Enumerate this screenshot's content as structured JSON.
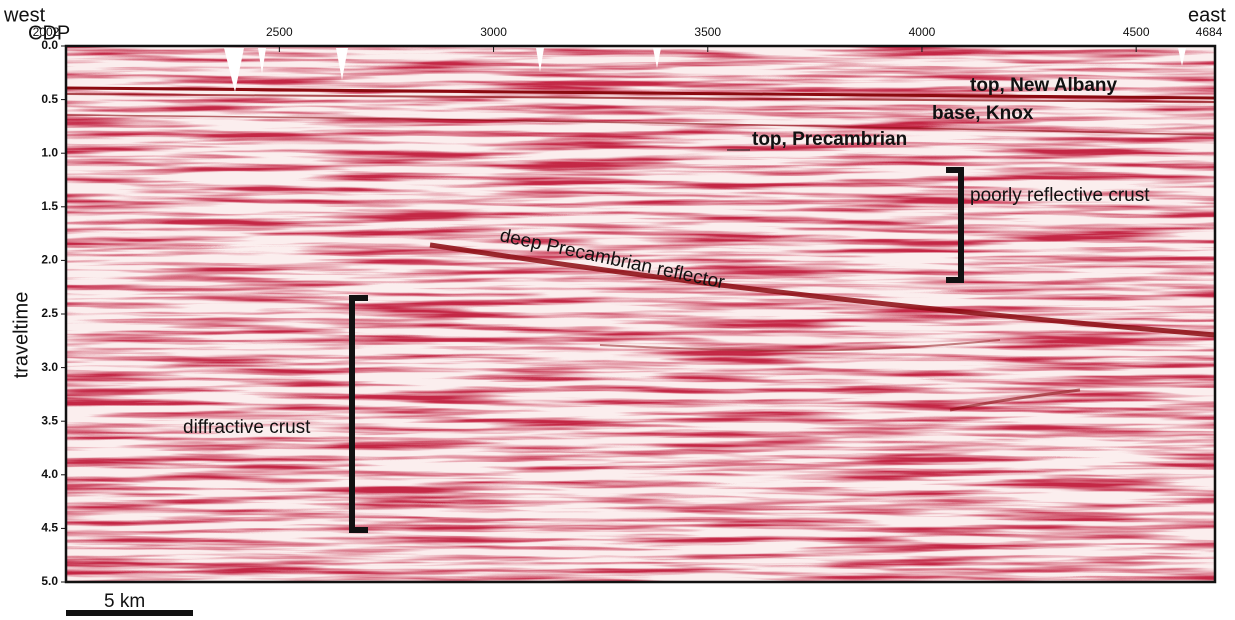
{
  "figure": {
    "x_axis": {
      "label": "CDP",
      "left_label": "west",
      "right_label": "east",
      "lim": [
        2002,
        4684
      ],
      "ticks": [
        2002,
        2500,
        3000,
        3500,
        4000,
        4500,
        4684
      ]
    },
    "y_axis": {
      "label": "traveltime",
      "lim": [
        0,
        5
      ],
      "ticks": [
        {
          "value": 0,
          "label": "0.0"
        },
        {
          "value": 0.5,
          "label": "0.5"
        },
        {
          "value": 1,
          "label": "1.0"
        },
        {
          "value": 1.5,
          "label": "1.5"
        },
        {
          "value": 2,
          "label": "2.0"
        },
        {
          "value": 2.5,
          "label": "2.5"
        },
        {
          "value": 3,
          "label": "3.0"
        },
        {
          "value": 3.5,
          "label": "3.5"
        },
        {
          "value": 4,
          "label": "4.0"
        },
        {
          "value": 4.5,
          "label": "4.5"
        },
        {
          "value": 5,
          "label": "5.0"
        }
      ]
    },
    "annotations": {
      "top_new_albany": "top, New Albany",
      "base_knox": "base, Knox",
      "top_precambrian": "top, Precambrian",
      "poorly_reflective": "poorly reflective crust",
      "deep_reflector": "deep Precambrian reflector",
      "diffractive": "diffractive crust"
    },
    "scale_bar": "5 km"
  }
}
